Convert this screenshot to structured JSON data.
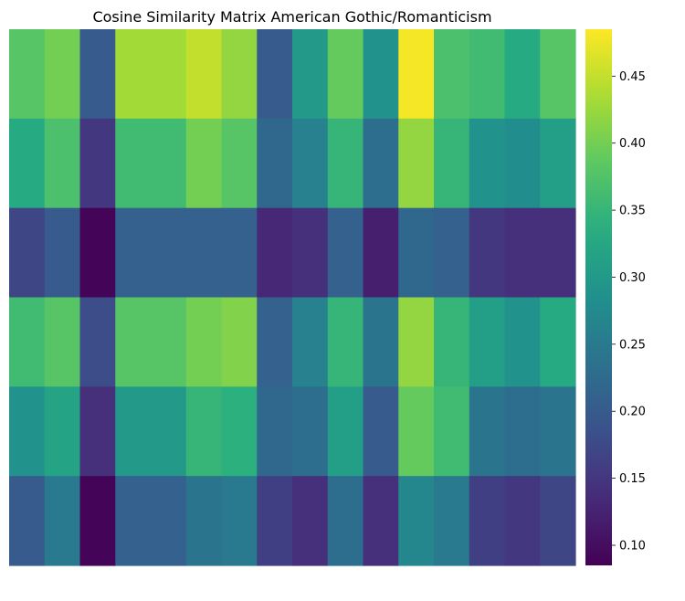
{
  "chart_data": {
    "type": "heatmap",
    "title": "Cosine Similarity Matrix American Gothic/Romanticism",
    "colormap": "viridis",
    "grid": false,
    "legend": "colorbar-right",
    "rows": 6,
    "cols": 16,
    "values": [
      [
        0.38,
        0.4,
        0.2,
        0.43,
        0.43,
        0.45,
        0.42,
        0.2,
        0.3,
        0.39,
        0.29,
        0.48,
        0.37,
        0.36,
        0.33,
        0.38
      ],
      [
        0.33,
        0.37,
        0.15,
        0.36,
        0.36,
        0.4,
        0.38,
        0.22,
        0.26,
        0.35,
        0.23,
        0.42,
        0.35,
        0.29,
        0.28,
        0.31
      ],
      [
        0.17,
        0.2,
        0.09,
        0.21,
        0.21,
        0.21,
        0.21,
        0.13,
        0.14,
        0.21,
        0.12,
        0.22,
        0.21,
        0.15,
        0.14,
        0.14
      ],
      [
        0.36,
        0.38,
        0.18,
        0.38,
        0.38,
        0.4,
        0.41,
        0.21,
        0.26,
        0.35,
        0.24,
        0.42,
        0.35,
        0.31,
        0.29,
        0.33
      ],
      [
        0.29,
        0.32,
        0.14,
        0.3,
        0.3,
        0.35,
        0.34,
        0.22,
        0.23,
        0.31,
        0.2,
        0.39,
        0.36,
        0.24,
        0.23,
        0.24
      ],
      [
        0.2,
        0.25,
        0.09,
        0.21,
        0.21,
        0.24,
        0.25,
        0.16,
        0.14,
        0.23,
        0.14,
        0.27,
        0.25,
        0.16,
        0.15,
        0.17
      ]
    ],
    "colorbar": {
      "min": 0.085,
      "max": 0.485,
      "ticks": [
        0.1,
        0.15,
        0.2,
        0.25,
        0.3,
        0.35,
        0.4,
        0.45
      ],
      "tick_labels": [
        "0.10",
        "0.15",
        "0.20",
        "0.25",
        "0.30",
        "0.35",
        "0.40",
        "0.45"
      ]
    }
  }
}
